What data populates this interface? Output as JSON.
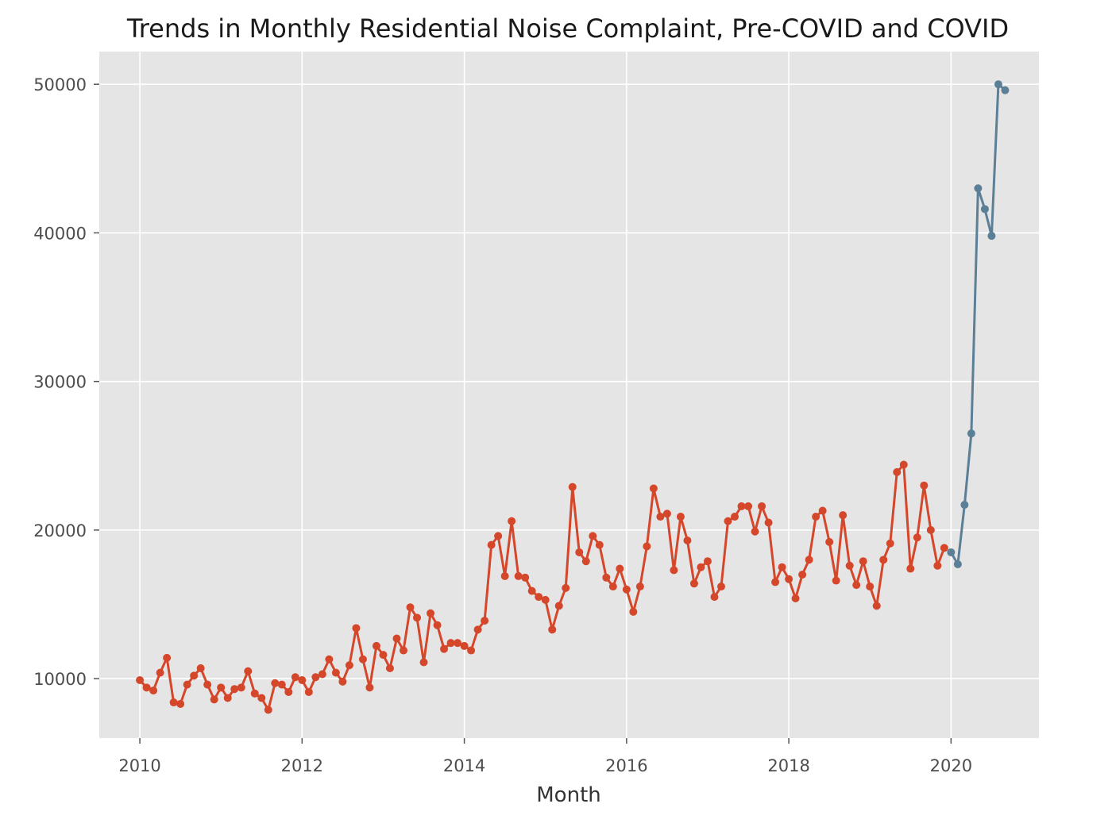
{
  "chart_data": {
    "type": "line",
    "title": "Trends in Monthly Residential Noise Complaint, Pre-COVID and COVID",
    "xlabel": "Month",
    "ylabel": "",
    "x_ticks": [
      "2010",
      "2012",
      "2014",
      "2016",
      "2018",
      "2020"
    ],
    "y_ticks": [
      "10000",
      "20000",
      "30000",
      "40000",
      "50000"
    ],
    "xlim": [
      "2009-07",
      "2021-02"
    ],
    "ylim": [
      6000,
      52200
    ],
    "grid": true,
    "legend": "none",
    "colors": {
      "background": "#e5e5e5",
      "grid": "#ffffff",
      "pre_covid": "#d5472b",
      "covid": "#5b7f96"
    },
    "series": [
      {
        "color": "#d5472b",
        "points": [
          [
            "2010-01",
            9900
          ],
          [
            "2010-02",
            9400
          ],
          [
            "2010-03",
            9200
          ],
          [
            "2010-04",
            10400
          ],
          [
            "2010-05",
            11400
          ],
          [
            "2010-06",
            8400
          ],
          [
            "2010-07",
            8300
          ],
          [
            "2010-08",
            9600
          ],
          [
            "2010-09",
            10200
          ],
          [
            "2010-10",
            10700
          ],
          [
            "2010-11",
            9600
          ],
          [
            "2010-12",
            8600
          ],
          [
            "2011-01",
            9400
          ],
          [
            "2011-02",
            8700
          ],
          [
            "2011-03",
            9300
          ],
          [
            "2011-04",
            9400
          ],
          [
            "2011-05",
            10500
          ],
          [
            "2011-06",
            9000
          ],
          [
            "2011-07",
            8700
          ],
          [
            "2011-08",
            7900
          ],
          [
            "2011-09",
            9700
          ],
          [
            "2011-10",
            9600
          ],
          [
            "2011-11",
            9100
          ],
          [
            "2011-12",
            10100
          ],
          [
            "2012-01",
            9900
          ],
          [
            "2012-02",
            9100
          ],
          [
            "2012-03",
            10100
          ],
          [
            "2012-04",
            10300
          ],
          [
            "2012-05",
            11300
          ],
          [
            "2012-06",
            10400
          ],
          [
            "2012-07",
            9800
          ],
          [
            "2012-08",
            10900
          ],
          [
            "2012-09",
            13400
          ],
          [
            "2012-10",
            11300
          ],
          [
            "2012-11",
            9400
          ],
          [
            "2012-12",
            12200
          ],
          [
            "2013-01",
            11600
          ],
          [
            "2013-02",
            10700
          ],
          [
            "2013-03",
            12700
          ],
          [
            "2013-04",
            11900
          ],
          [
            "2013-05",
            14800
          ],
          [
            "2013-06",
            14100
          ],
          [
            "2013-07",
            11100
          ],
          [
            "2013-08",
            14400
          ],
          [
            "2013-09",
            13600
          ],
          [
            "2013-10",
            12000
          ],
          [
            "2013-11",
            12400
          ],
          [
            "2013-12",
            12400
          ],
          [
            "2014-01",
            12200
          ],
          [
            "2014-02",
            11900
          ],
          [
            "2014-03",
            13300
          ],
          [
            "2014-04",
            13900
          ],
          [
            "2014-05",
            19000
          ],
          [
            "2014-06",
            19600
          ],
          [
            "2014-07",
            16900
          ],
          [
            "2014-08",
            20600
          ],
          [
            "2014-09",
            16900
          ],
          [
            "2014-10",
            16800
          ],
          [
            "2014-11",
            15900
          ],
          [
            "2014-12",
            15500
          ],
          [
            "2015-01",
            15300
          ],
          [
            "2015-02",
            13300
          ],
          [
            "2015-03",
            14900
          ],
          [
            "2015-04",
            16100
          ],
          [
            "2015-05",
            22900
          ],
          [
            "2015-06",
            18500
          ],
          [
            "2015-07",
            17900
          ],
          [
            "2015-08",
            19600
          ],
          [
            "2015-09",
            19000
          ],
          [
            "2015-10",
            16800
          ],
          [
            "2015-11",
            16200
          ],
          [
            "2015-12",
            17400
          ],
          [
            "2016-01",
            16000
          ],
          [
            "2016-02",
            14500
          ],
          [
            "2016-03",
            16200
          ],
          [
            "2016-04",
            18900
          ],
          [
            "2016-05",
            22800
          ],
          [
            "2016-06",
            20900
          ],
          [
            "2016-07",
            21100
          ],
          [
            "2016-08",
            17300
          ],
          [
            "2016-09",
            20900
          ],
          [
            "2016-10",
            19300
          ],
          [
            "2016-11",
            16400
          ],
          [
            "2016-12",
            17500
          ],
          [
            "2017-01",
            17900
          ],
          [
            "2017-02",
            15500
          ],
          [
            "2017-03",
            16200
          ],
          [
            "2017-04",
            20600
          ],
          [
            "2017-05",
            20900
          ],
          [
            "2017-06",
            21600
          ],
          [
            "2017-07",
            21600
          ],
          [
            "2017-08",
            19900
          ],
          [
            "2017-09",
            21600
          ],
          [
            "2017-10",
            20500
          ],
          [
            "2017-11",
            16500
          ],
          [
            "2017-12",
            17500
          ],
          [
            "2018-01",
            16700
          ],
          [
            "2018-02",
            15400
          ],
          [
            "2018-03",
            17000
          ],
          [
            "2018-04",
            18000
          ],
          [
            "2018-05",
            20900
          ],
          [
            "2018-06",
            21300
          ],
          [
            "2018-07",
            19200
          ],
          [
            "2018-08",
            16600
          ],
          [
            "2018-09",
            21000
          ],
          [
            "2018-10",
            17600
          ],
          [
            "2018-11",
            16300
          ],
          [
            "2018-12",
            17900
          ],
          [
            "2019-01",
            16200
          ],
          [
            "2019-02",
            14900
          ],
          [
            "2019-03",
            18000
          ],
          [
            "2019-04",
            19100
          ],
          [
            "2019-05",
            23900
          ],
          [
            "2019-06",
            24400
          ],
          [
            "2019-07",
            17400
          ],
          [
            "2019-08",
            19500
          ],
          [
            "2019-09",
            23000
          ],
          [
            "2019-10",
            20000
          ],
          [
            "2019-11",
            17600
          ],
          [
            "2019-12",
            18800
          ]
        ]
      },
      {
        "color": "#5b7f96",
        "points": [
          [
            "2020-01",
            18500
          ],
          [
            "2020-02",
            17700
          ],
          [
            "2020-03",
            21700
          ],
          [
            "2020-04",
            26500
          ],
          [
            "2020-05",
            43000
          ],
          [
            "2020-06",
            41600
          ],
          [
            "2020-07",
            39800
          ],
          [
            "2020-08",
            50000
          ],
          [
            "2020-09",
            49600
          ]
        ]
      }
    ]
  }
}
